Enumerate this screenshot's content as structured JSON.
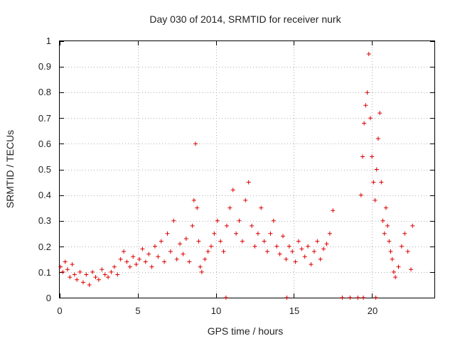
{
  "chart_data": {
    "type": "scatter",
    "title": "Day 030 of 2014, SRMTID for receiver nurk",
    "xlabel": "GPS time / hours",
    "ylabel": "SRMTID / TECUs",
    "xlim": [
      0,
      24
    ],
    "ylim": [
      0,
      1
    ],
    "xticks": [
      0,
      5,
      10,
      15,
      20
    ],
    "xtick_labels": [
      "0",
      "5",
      "10",
      "15",
      "20"
    ],
    "yticks": [
      0,
      0.1,
      0.2,
      0.3,
      0.4,
      0.5,
      0.6,
      0.7,
      0.8,
      0.9,
      1
    ],
    "ytick_labels": [
      "0",
      "0.1",
      "0.2",
      "0.3",
      "0.4",
      "0.5",
      "0.6",
      "0.7",
      "0.8",
      "0.9",
      "1"
    ],
    "grid": true,
    "marker": "+",
    "series_color": "#dd0000",
    "series": [
      {
        "name": "SRMTID",
        "x": [
          0.05,
          0.2,
          0.35,
          0.5,
          0.65,
          0.8,
          0.95,
          1.1,
          1.3,
          1.5,
          1.7,
          1.9,
          2.1,
          2.3,
          2.5,
          2.7,
          2.9,
          3.1,
          3.3,
          3.5,
          3.7,
          3.9,
          4.1,
          4.3,
          4.5,
          4.7,
          4.9,
          5.1,
          5.3,
          5.5,
          5.7,
          5.9,
          6.1,
          6.3,
          6.5,
          6.7,
          6.9,
          7.1,
          7.3,
          7.5,
          7.7,
          7.9,
          8.1,
          8.3,
          8.5,
          8.6,
          8.7,
          8.8,
          8.9,
          9.0,
          9.1,
          9.3,
          9.5,
          9.7,
          9.9,
          10.1,
          10.3,
          10.5,
          10.7,
          10.9,
          11.1,
          11.3,
          11.5,
          11.7,
          11.9,
          12.1,
          12.3,
          12.5,
          12.7,
          12.9,
          13.1,
          13.3,
          13.5,
          13.7,
          13.9,
          14.1,
          14.3,
          14.5,
          14.7,
          14.9,
          15.1,
          15.3,
          15.5,
          15.7,
          15.9,
          16.1,
          16.3,
          16.5,
          16.7,
          16.9,
          17.1,
          17.3,
          17.5,
          19.3,
          19.4,
          19.5,
          19.6,
          19.7,
          19.8,
          19.9,
          20.0,
          20.1,
          20.2,
          20.3,
          20.4,
          20.5,
          20.6,
          20.7,
          20.8,
          20.9,
          21.0,
          21.1,
          21.2,
          21.3,
          21.4,
          21.5,
          21.7,
          21.9,
          22.1,
          22.3,
          22.5,
          22.6
        ],
        "y": [
          0.12,
          0.1,
          0.14,
          0.11,
          0.08,
          0.13,
          0.09,
          0.07,
          0.1,
          0.06,
          0.09,
          0.05,
          0.1,
          0.08,
          0.07,
          0.11,
          0.09,
          0.08,
          0.1,
          0.12,
          0.09,
          0.15,
          0.18,
          0.14,
          0.12,
          0.16,
          0.13,
          0.15,
          0.19,
          0.14,
          0.17,
          0.12,
          0.2,
          0.16,
          0.22,
          0.14,
          0.25,
          0.18,
          0.3,
          0.15,
          0.21,
          0.17,
          0.23,
          0.14,
          0.28,
          0.38,
          0.6,
          0.35,
          0.22,
          0.12,
          0.1,
          0.15,
          0.18,
          0.2,
          0.25,
          0.3,
          0.22,
          0.18,
          0.28,
          0.35,
          0.42,
          0.25,
          0.3,
          0.22,
          0.38,
          0.45,
          0.28,
          0.2,
          0.25,
          0.35,
          0.22,
          0.18,
          0.25,
          0.3,
          0.2,
          0.17,
          0.24,
          0.15,
          0.2,
          0.18,
          0.14,
          0.22,
          0.19,
          0.16,
          0.2,
          0.13,
          0.18,
          0.22,
          0.15,
          0.19,
          0.21,
          0.25,
          0.34,
          0.4,
          0.55,
          0.68,
          0.75,
          0.8,
          0.95,
          0.7,
          0.55,
          0.45,
          0.38,
          0.5,
          0.62,
          0.72,
          0.45,
          0.3,
          0.25,
          0.35,
          0.28,
          0.22,
          0.18,
          0.15,
          0.1,
          0.08,
          0.12,
          0.2,
          0.25,
          0.18,
          0.11,
          0.28
        ],
        "zeros_x": [
          10.65,
          14.55,
          18.1,
          18.6,
          19.1,
          19.45,
          20.25
        ]
      }
    ]
  }
}
